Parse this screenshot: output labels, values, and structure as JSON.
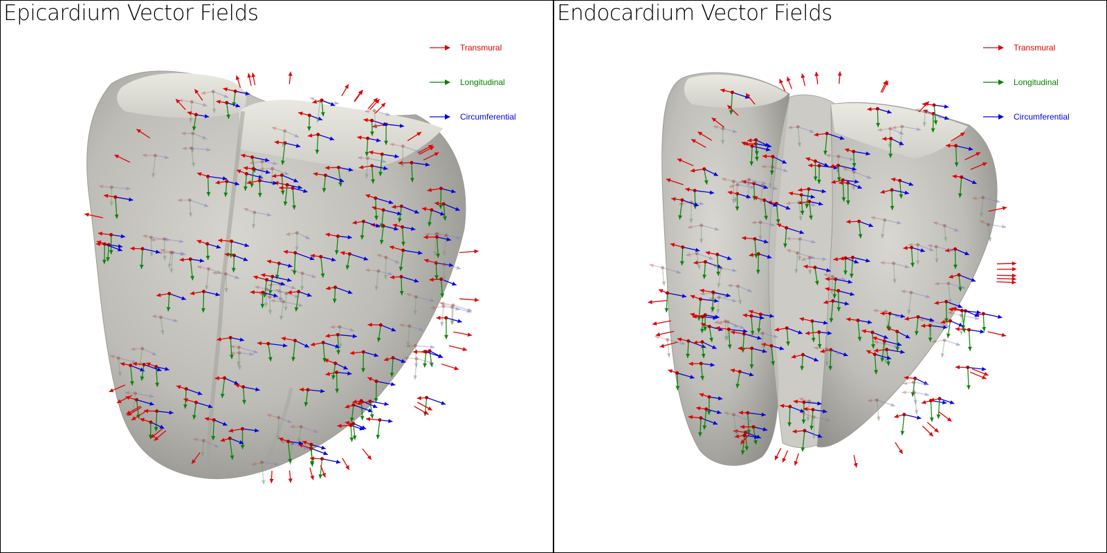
{
  "panels": [
    {
      "title": "Epicardium Vector Fields",
      "legend": [
        {
          "label": "Transmural",
          "color": "#e00000",
          "icon": "red-arrow-icon"
        },
        {
          "label": "Longitudinal",
          "color": "#008000",
          "icon": "green-arrow-icon"
        },
        {
          "label": "Circumferential",
          "color": "#0000e0",
          "icon": "blue-arrow-icon"
        }
      ]
    },
    {
      "title": "Endocardium Vector Fields",
      "legend": [
        {
          "label": "Transmural",
          "color": "#e00000",
          "icon": "red-arrow-icon"
        },
        {
          "label": "Longitudinal",
          "color": "#008000",
          "icon": "green-arrow-icon"
        },
        {
          "label": "Circumferential",
          "color": "#0000e0",
          "icon": "blue-arrow-icon"
        }
      ]
    }
  ],
  "colors": {
    "transmural": "#e00000",
    "longitudinal": "#008000",
    "circumferential": "#0000e0",
    "surface": "#b9b8b2",
    "surface_light": "#dddcd5",
    "surface_dark": "#8f8e88"
  }
}
